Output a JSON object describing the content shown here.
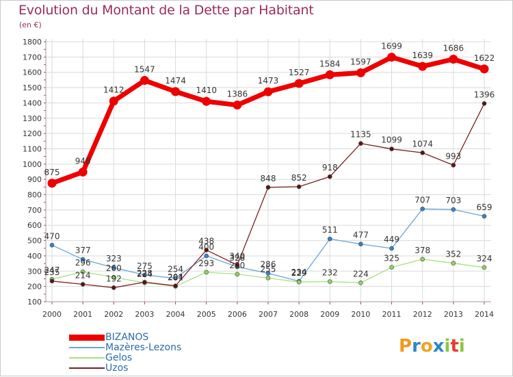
{
  "header": {
    "title": "Evolution du Montant de la Dette par Habitant",
    "subtitle": "(en €)"
  },
  "logo": {
    "text": "Proxiti",
    "letters": [
      "P",
      "r",
      "o",
      "x",
      "i",
      "t",
      "i"
    ],
    "colors": [
      "#f39a1f",
      "#2f86c8",
      "#f0a420",
      "#2f86c8",
      "#8cc63f",
      "#e53d2f",
      "#8cc63f"
    ]
  },
  "chart_data": {
    "type": "line",
    "title": "Evolution du Montant de la Dette par Habitant",
    "subtitle": "(en €)",
    "xlabel": "",
    "ylabel": "",
    "x": [
      "2000",
      "2001",
      "2002",
      "2003",
      "2004",
      "2005",
      "2006",
      "2007",
      "2008",
      "2009",
      "2010",
      "2011",
      "2012",
      "2013",
      "2014"
    ],
    "yticks": [
      100,
      200,
      300,
      400,
      500,
      600,
      700,
      800,
      900,
      1000,
      1100,
      1200,
      1300,
      1400,
      1500,
      1600,
      1700,
      1800
    ],
    "ylim": [
      100,
      1800
    ],
    "grid": true,
    "legend_position": "bottom-left",
    "series": [
      {
        "name": "BIZANOS",
        "color": "#ee0000",
        "point_color": "#ee0000",
        "width": 7,
        "values": [
          875,
          948,
          1412,
          1547,
          1474,
          1410,
          1386,
          1473,
          1527,
          1584,
          1597,
          1699,
          1639,
          1686,
          1622
        ],
        "labels": [
          "875",
          "948",
          "1412",
          "1547",
          "1474",
          "1410",
          "1386",
          "1473",
          "1527",
          "1584",
          "1597",
          "1699",
          "1639",
          "1686",
          "1622"
        ]
      },
      {
        "name": "Mazères-Lezons",
        "color": "#6ba3d6",
        "point_color": "#3a82c4",
        "width": 1.3,
        "values": [
          470,
          377,
          323,
          275,
          254,
          400,
          328,
          286,
          234,
          511,
          477,
          449,
          707,
          703,
          659
        ],
        "labels": [
          "470",
          "377",
          "323",
          "275",
          "254",
          "400",
          "328",
          "286",
          "234",
          "511",
          "477",
          "449",
          "707",
          "703",
          "659"
        ]
      },
      {
        "name": "Gelos",
        "color": "#a6e07e",
        "point_color": "#8fd45e",
        "width": 1.3,
        "values": [
          247,
          296,
          260,
          224,
          201,
          293,
          280,
          255,
          229,
          232,
          224,
          325,
          378,
          352,
          324
        ],
        "labels": [
          "247",
          "296",
          "260",
          "224",
          "201",
          "293",
          "280",
          "255",
          "229",
          "232",
          "224",
          "325",
          "378",
          "352",
          "324"
        ]
      },
      {
        "name": "Uzos",
        "color": "#7a1f1f",
        "point_color": "#5a1414",
        "width": 1.3,
        "values": [
          235,
          214,
          192,
          228,
          204,
          438,
          340,
          848,
          852,
          918,
          1135,
          1099,
          1074,
          993,
          1396
        ],
        "labels": [
          "235",
          "214",
          "192",
          "228",
          "204",
          "438",
          "340",
          "848",
          "852",
          "918",
          "1135",
          "1099",
          "1074",
          "993",
          "1396"
        ]
      }
    ]
  }
}
